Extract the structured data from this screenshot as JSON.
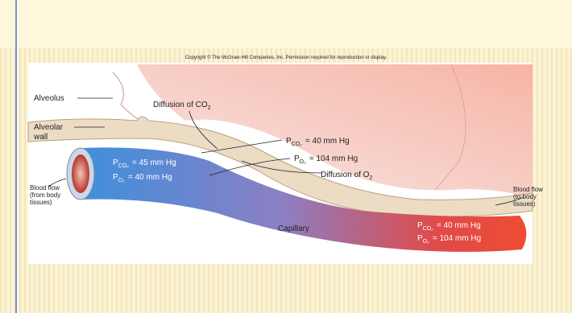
{
  "slide": {
    "copyright": "Copyright © The McGraw-Hill Companies, Inc. Permission required for reproduction or display."
  },
  "diagram": {
    "alveolus": "Alveolus",
    "diffusion_co2": {
      "text": "Diffusion of CO",
      "sub": "2"
    },
    "alveolar_wall": [
      "Alveolar",
      "wall"
    ],
    "alveolus_pco2": {
      "symbol": "P",
      "sub": "CO₂",
      "text": "= 40 mm Hg"
    },
    "alveolus_po2": {
      "symbol": "P",
      "sub": "O₂",
      "text": "= 104 mm Hg"
    },
    "diffusion_o2": {
      "text": "Diffusion of O",
      "sub": "2"
    },
    "venous_pco2": {
      "symbol": "P",
      "sub": "CO₂",
      "text": "= 45 mm Hg"
    },
    "venous_po2": {
      "symbol": "P",
      "sub": "O₂",
      "text": "= 40 mm Hg"
    },
    "blood_flow_in": [
      "Blood flow",
      "(from body",
      "tissues)"
    ],
    "capillary": "Capillary",
    "blood_flow_out": [
      "Blood flow",
      "(to body",
      "tissues)"
    ],
    "arterial_pco2": {
      "symbol": "P",
      "sub": "CO₂",
      "text": "= 40 mm Hg"
    },
    "arterial_po2": {
      "symbol": "P",
      "sub": "O₂",
      "text": "= 104 mm Hg"
    }
  }
}
